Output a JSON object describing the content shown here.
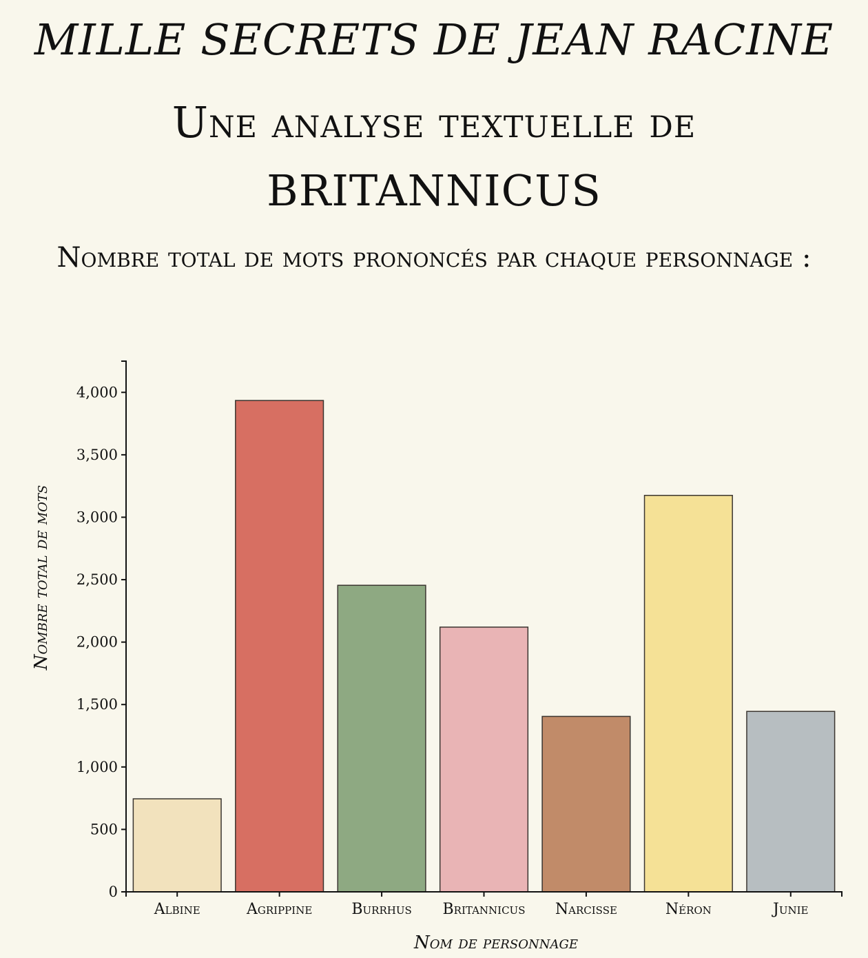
{
  "page": {
    "title": "MILLE SECRETS DE JEAN RACINE",
    "subtitle": "Une analyse textuelle de BRITANNICUS",
    "chart_heading": "Nombre total de mots prononcés par chaque personnage :"
  },
  "colors": {
    "background": "#f9f7ec",
    "bar_stroke": "#3a3530"
  },
  "chart_data": {
    "type": "bar",
    "title": "Nombre total de mots prononcés par chaque personnage :",
    "xlabel": "Nom de personnage",
    "ylabel": "Nombre total de mots",
    "categories": [
      "Albine",
      "Agrippine",
      "Burrhus",
      "Britannicus",
      "Narcisse",
      "Néron",
      "Junie"
    ],
    "values": [
      745,
      3935,
      2455,
      2120,
      1405,
      3175,
      1445
    ],
    "bar_colors": [
      "#f2e2bd",
      "#d76f62",
      "#8ea982",
      "#e9b4b5",
      "#c18b69",
      "#f5e196",
      "#b7bec1"
    ],
    "ylim": [
      0,
      4250
    ],
    "yticks": [
      0,
      500,
      1000,
      1500,
      2000,
      2500,
      3000,
      3500,
      4000
    ],
    "ytick_labels": [
      "0",
      "500",
      "1,000",
      "1,500",
      "2,000",
      "2,500",
      "3,000",
      "3,500",
      "4,000"
    ],
    "grid": false,
    "legend": "none"
  }
}
